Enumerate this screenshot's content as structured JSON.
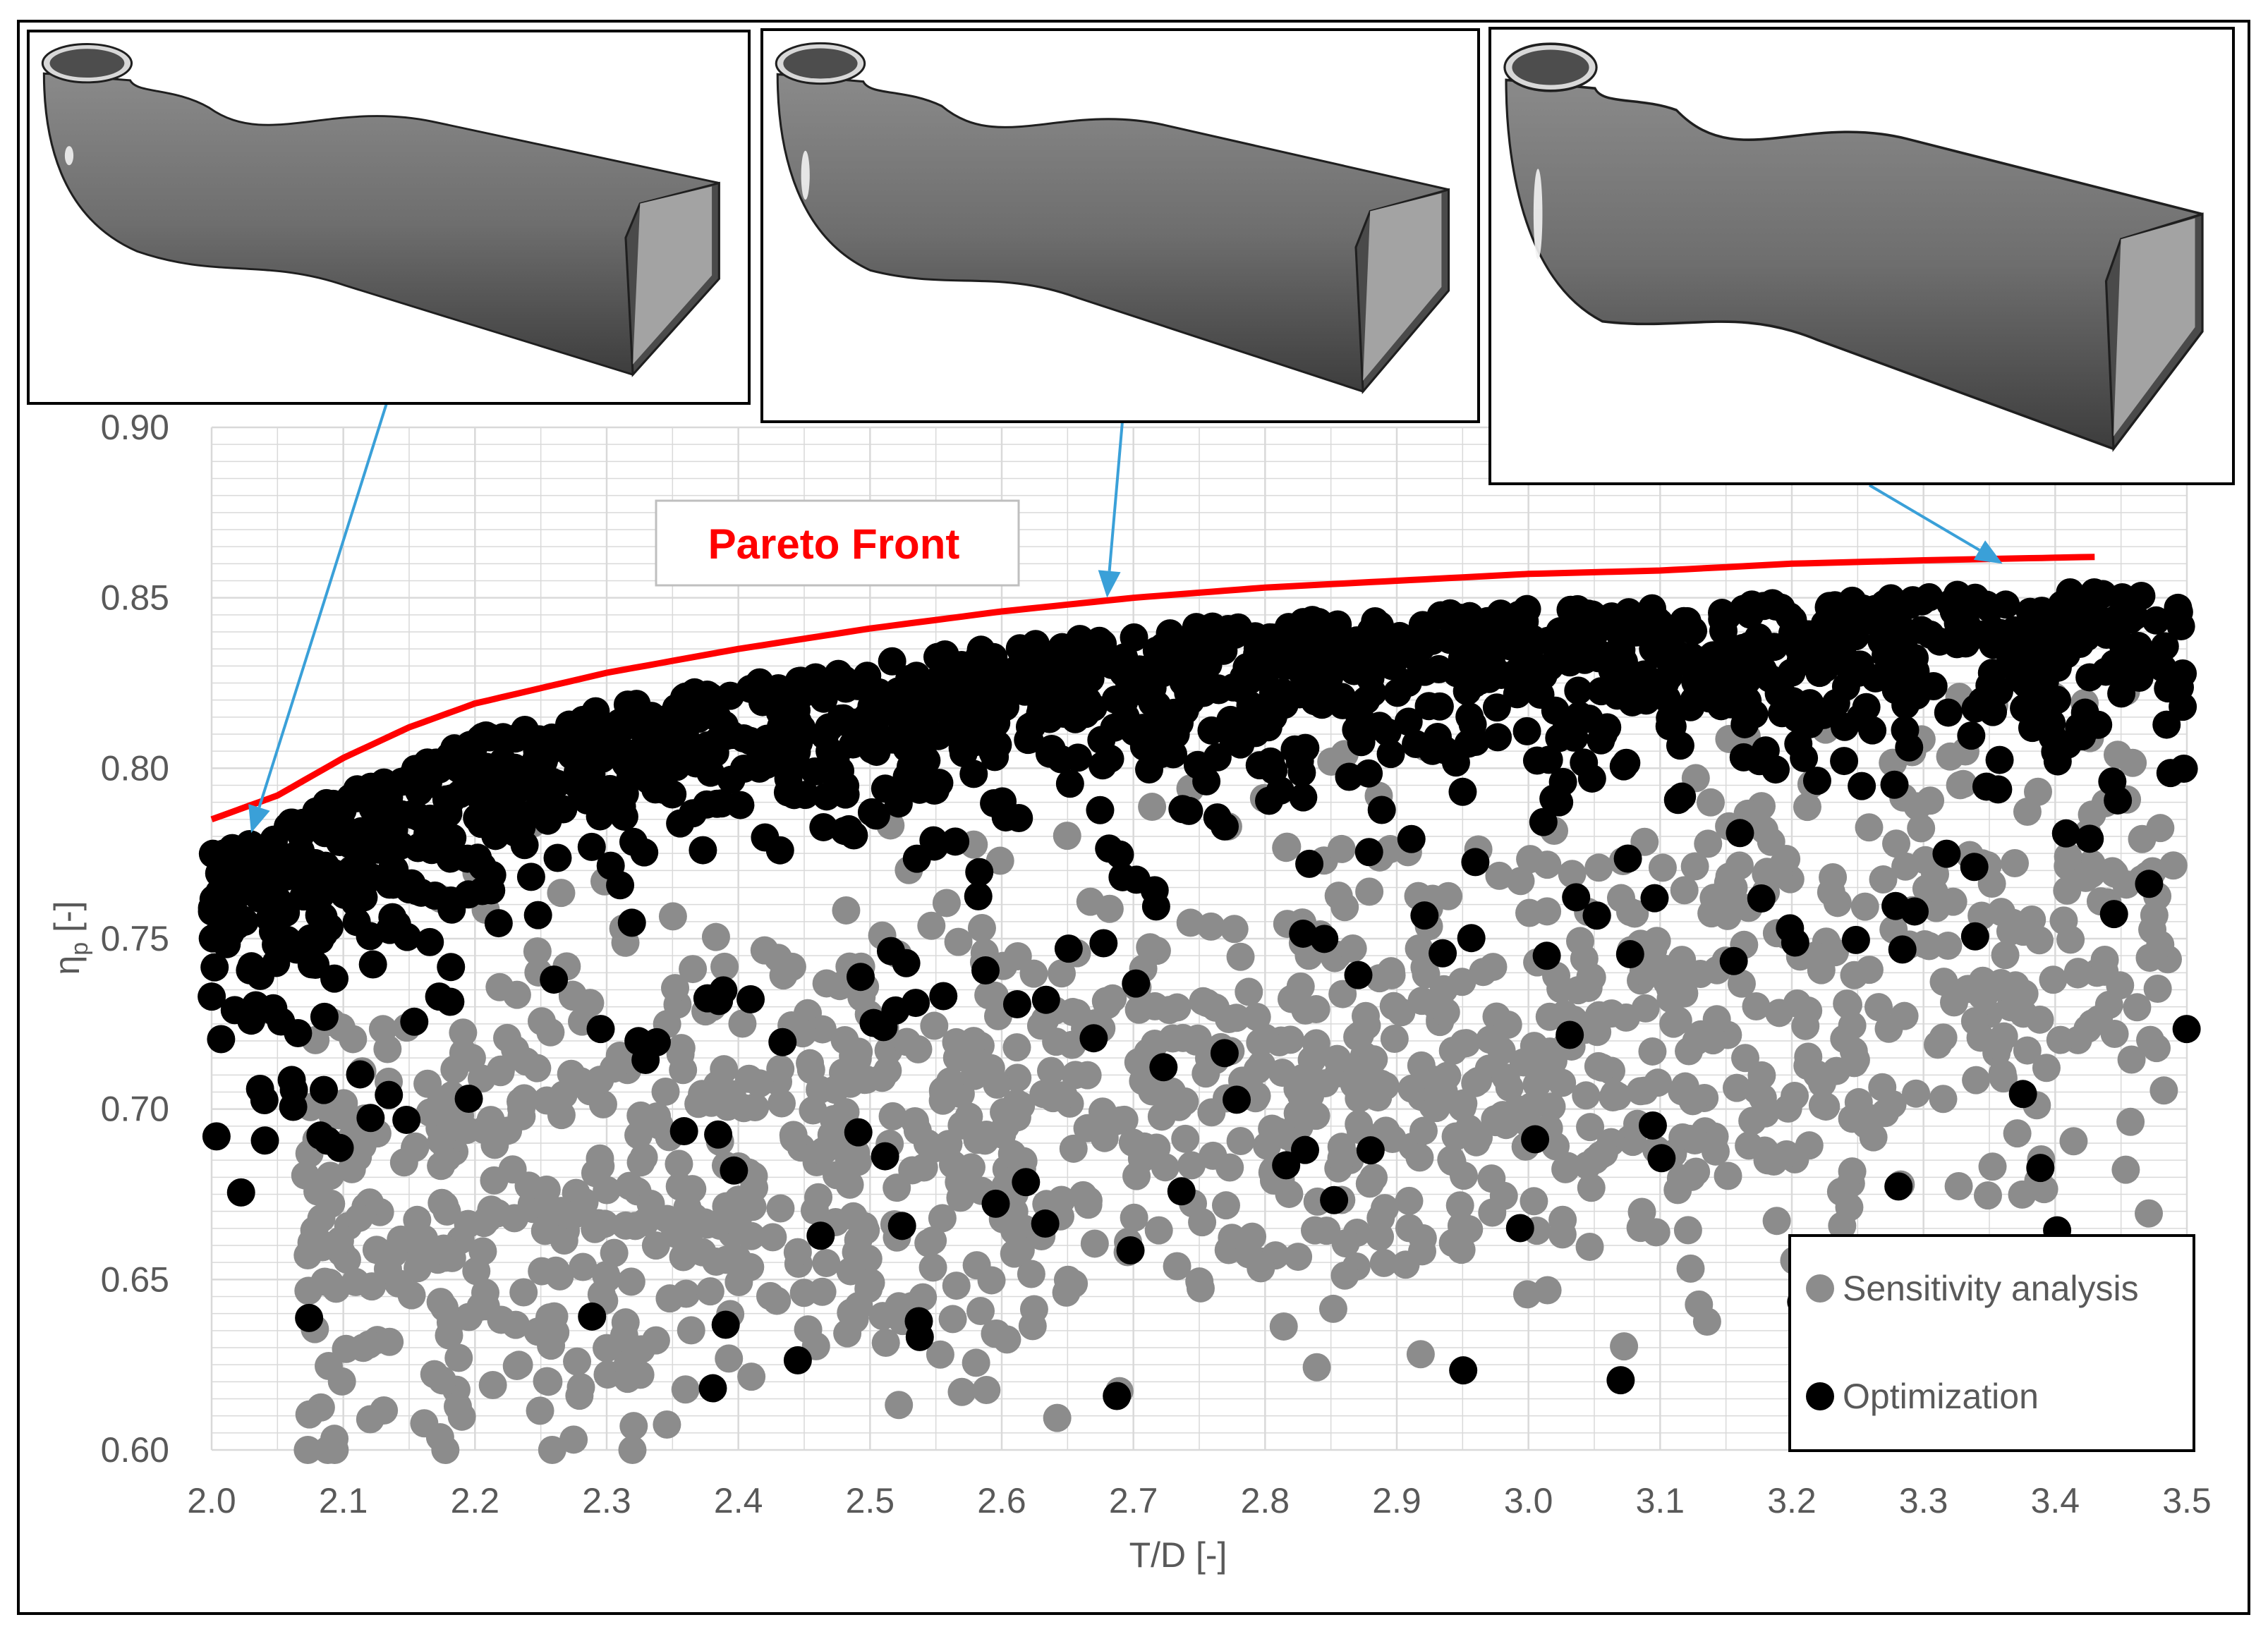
{
  "chart_data": {
    "type": "scatter",
    "xlabel": "T/D [-]",
    "ylabel": "η",
    "ylabel_sub": "p",
    "ylabel_unit": " [-]",
    "xlim": [
      2.0,
      3.5
    ],
    "ylim": [
      0.6,
      0.9
    ],
    "x_ticks": [
      "2.0",
      "2.1",
      "2.2",
      "2.3",
      "2.4",
      "2.5",
      "2.6",
      "2.7",
      "2.8",
      "2.9",
      "3.0",
      "3.1",
      "3.2",
      "3.3",
      "3.4",
      "3.5"
    ],
    "y_ticks": [
      "0.60",
      "0.65",
      "0.70",
      "0.75",
      "0.80",
      "0.85",
      "0.90"
    ],
    "grid": true,
    "legend_position": "bottom-right",
    "series": [
      {
        "name": "Sensitivity analysis",
        "color": "#8c8c8c",
        "point_count_approx": 1200,
        "x_range": [
          2.07,
          3.49
        ],
        "y_range": [
          0.6,
          0.84
        ]
      },
      {
        "name": "Optimization",
        "color": "#000000",
        "point_count_approx": 1400,
        "x_range": [
          2.0,
          3.5
        ],
        "y_range": [
          0.608,
          0.855
        ]
      }
    ],
    "pareto_front": {
      "label": "Pareto Front",
      "color": "#ff0000",
      "points": [
        [
          2.0,
          0.785
        ],
        [
          2.05,
          0.792
        ],
        [
          2.1,
          0.803
        ],
        [
          2.15,
          0.812
        ],
        [
          2.2,
          0.819
        ],
        [
          2.3,
          0.828
        ],
        [
          2.4,
          0.835
        ],
        [
          2.5,
          0.841
        ],
        [
          2.6,
          0.846
        ],
        [
          2.7,
          0.85
        ],
        [
          2.8,
          0.853
        ],
        [
          2.9,
          0.855
        ],
        [
          3.0,
          0.857
        ],
        [
          3.1,
          0.858
        ],
        [
          3.2,
          0.86
        ],
        [
          3.3,
          0.861
        ],
        [
          3.43,
          0.862
        ]
      ]
    },
    "callouts": [
      {
        "target": [
          2.03,
          0.781
        ],
        "inset": "design-1"
      },
      {
        "target": [
          2.68,
          0.85
        ],
        "inset": "design-2"
      },
      {
        "target": [
          3.36,
          0.86
        ],
        "inset": "design-3"
      }
    ]
  },
  "colors": {
    "arrow": "#3aa0d8",
    "grid": "#d9d9d9",
    "tick_text": "#595959",
    "duct": "#6e6e6e"
  }
}
